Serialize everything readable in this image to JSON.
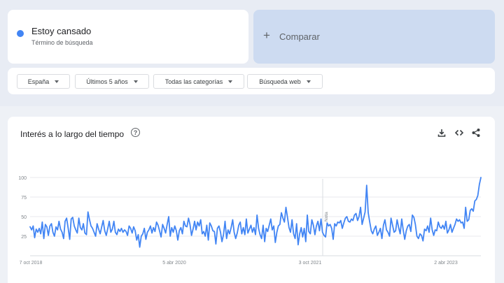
{
  "search_term": {
    "label": "Estoy cansado",
    "subtitle": "Término de búsqueda",
    "color": "#4285f4"
  },
  "compare": {
    "plus": "+",
    "label": "Comparar"
  },
  "filters": [
    {
      "label": "España"
    },
    {
      "label": "Últimos 5 años"
    },
    {
      "label": "Todas las categorías"
    },
    {
      "label": "Búsqueda web"
    }
  ],
  "chart_section": {
    "title": "Interés a lo largo del tiempo",
    "help": "?"
  },
  "icons": [
    "download-icon",
    "embed-icon",
    "share-icon"
  ],
  "chart_data": {
    "type": "line",
    "title": "Interés a lo largo del tiempo",
    "series": [
      {
        "name": "Estoy cansado",
        "color": "#4285f4"
      }
    ],
    "x_ticks": [
      "7 oct 2018",
      "5 abr 2020",
      "3 oct 2021",
      "2 abr 2023"
    ],
    "y_ticks": [
      25,
      50,
      75,
      100
    ],
    "ylim": [
      0,
      100
    ],
    "annotation": "Nota",
    "values": [
      37,
      33,
      38,
      23,
      34,
      30,
      35,
      28,
      43,
      22,
      40,
      37,
      26,
      38,
      41,
      30,
      25,
      37,
      33,
      44,
      34,
      30,
      22,
      44,
      48,
      35,
      21,
      47,
      49,
      38,
      33,
      29,
      48,
      36,
      33,
      41,
      29,
      27,
      56,
      46,
      38,
      35,
      30,
      25,
      41,
      34,
      28,
      37,
      45,
      32,
      26,
      35,
      44,
      30,
      34,
      44,
      30,
      27,
      34,
      31,
      35,
      30,
      33,
      31,
      26,
      38,
      35,
      29,
      37,
      32,
      20,
      27,
      11,
      25,
      28,
      35,
      21,
      30,
      33,
      38,
      29,
      36,
      31,
      43,
      39,
      32,
      24,
      40,
      35,
      29,
      40,
      50,
      25,
      36,
      30,
      38,
      32,
      20,
      32,
      36,
      28,
      44,
      38,
      37,
      48,
      40,
      26,
      34,
      44,
      33,
      43,
      38,
      46,
      28,
      31,
      25,
      39,
      20,
      42,
      38,
      32,
      31,
      15,
      35,
      38,
      30,
      18,
      27,
      44,
      22,
      33,
      28,
      36,
      46,
      30,
      22,
      29,
      39,
      43,
      28,
      36,
      27,
      47,
      29,
      34,
      39,
      30,
      36,
      27,
      52,
      35,
      27,
      22,
      39,
      18,
      35,
      31,
      39,
      47,
      33,
      38,
      17,
      30,
      38,
      40,
      55,
      48,
      43,
      62,
      49,
      36,
      30,
      46,
      28,
      22,
      41,
      14,
      28,
      36,
      24,
      35,
      18,
      52,
      31,
      28,
      46,
      39,
      27,
      38,
      44,
      32,
      47,
      30,
      26,
      24,
      42,
      38,
      40,
      35,
      21,
      41,
      38,
      43,
      42,
      45,
      35,
      42,
      48,
      50,
      44,
      43,
      47,
      45,
      52,
      54,
      45,
      50,
      62,
      40,
      48,
      56,
      90,
      55,
      43,
      32,
      28,
      34,
      38,
      26,
      30,
      35,
      22,
      39,
      46,
      33,
      30,
      25,
      48,
      39,
      30,
      32,
      46,
      36,
      28,
      47,
      33,
      21,
      32,
      38,
      40,
      31,
      52,
      49,
      40,
      25,
      22,
      28,
      26,
      19,
      34,
      32,
      38,
      30,
      48,
      33,
      26,
      33,
      32,
      43,
      37,
      35,
      39,
      34,
      44,
      29,
      33,
      40,
      30,
      35,
      40,
      47,
      44,
      46,
      42,
      43,
      35,
      62,
      44,
      46,
      58,
      60,
      57,
      70,
      72,
      77,
      91,
      100
    ]
  }
}
